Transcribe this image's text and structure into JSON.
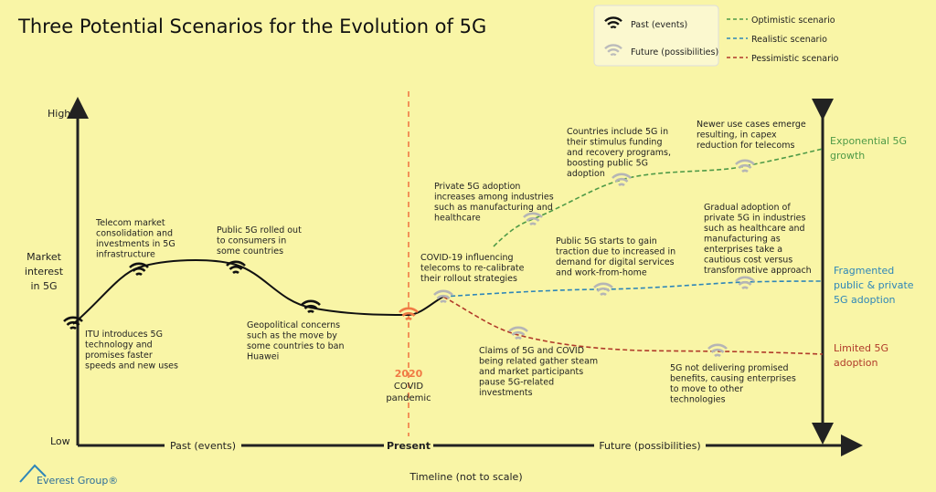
{
  "title": "Three Potential Scenarios for the Evolution of 5G",
  "legend": {
    "past": "Past (events)",
    "future": "Future (possibilities)",
    "optimistic": "Optimistic scenario",
    "realistic": "Realistic scenario",
    "pessimistic": "Pessimistic scenario"
  },
  "y_axis": {
    "label": [
      "Market",
      "interest",
      "in 5G"
    ],
    "high": "High",
    "low": "Low"
  },
  "x_axis": {
    "past": "Past (events)",
    "present": "Present",
    "future": "Future (possibilities)",
    "caption": "Timeline (not to scale)"
  },
  "covid": {
    "year": "2020",
    "lines": [
      "COVID",
      "pandemic"
    ]
  },
  "annotations": [
    {
      "lines": [
        "ITU introduces 5G",
        "technology and",
        "promises faster",
        "speeds and new uses"
      ]
    },
    {
      "lines": [
        "Telecom market",
        "consolidation and",
        "investments in 5G",
        "infrastructure"
      ]
    },
    {
      "lines": [
        "Public 5G rolled out",
        "to consumers in",
        "some countries"
      ]
    },
    {
      "lines": [
        "Geopolitical concerns",
        "such as the move by",
        "some countries to ban",
        "Huawei"
      ]
    },
    {
      "lines": [
        "COVID-19 influencing",
        "telecoms to re-calibrate",
        "their rollout strategies"
      ]
    },
    {
      "lines": [
        "Private 5G adoption",
        "increases among industries",
        "such as manufacturing and",
        "healthcare"
      ]
    },
    {
      "lines": [
        "Countries include 5G in",
        "their stimulus funding",
        "and recovery programs,",
        "boosting public 5G",
        "adoption"
      ]
    },
    {
      "lines": [
        "Newer use cases emerge",
        "resulting, in capex",
        "reduction for telecoms"
      ]
    },
    {
      "lines": [
        "Public 5G starts to gain",
        "traction due to increased in",
        "demand for digital services",
        "and work-from-home"
      ]
    },
    {
      "lines": [
        "Gradual adoption of",
        "private 5G in industries",
        "such as healthcare and",
        "manufacturing as",
        "enterprises take a",
        "cautious cost versus",
        "transformative approach"
      ]
    },
    {
      "lines": [
        "Claims of 5G and COVID",
        "being related gather steam",
        "and market participants",
        "pause 5G-related",
        "investments"
      ]
    },
    {
      "lines": [
        "5G not delivering promised",
        "benefits, causing enterprises",
        "to move to other",
        "technologies"
      ]
    }
  ],
  "outcomes": {
    "optimistic": [
      "Exponential 5G",
      "growth"
    ],
    "realistic": [
      "Fragmented",
      "public & private",
      "5G adoption"
    ],
    "pessimistic": [
      "Limited 5G",
      "adoption"
    ]
  },
  "logo": "Everest Group®"
}
